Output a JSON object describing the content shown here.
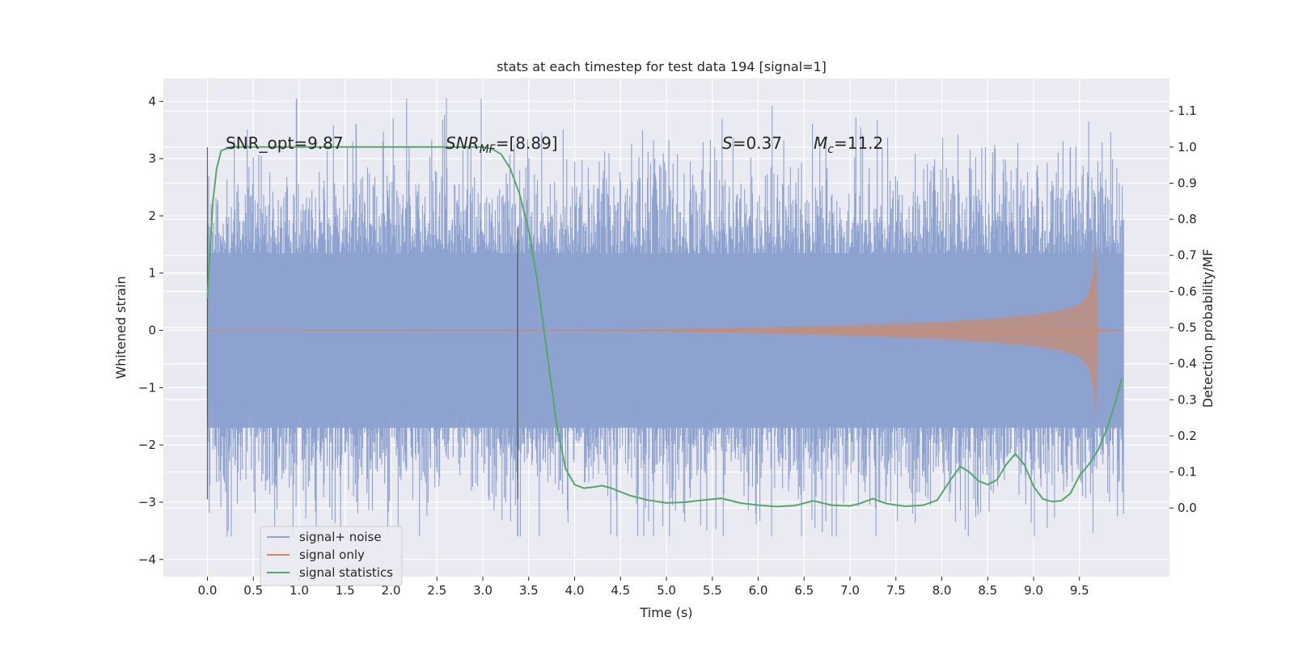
{
  "chart_data": {
    "type": "line",
    "title": "stats at each timestep for test data 194 [signal=1]",
    "xlabel": "Time (s)",
    "ylabel_left": "Whitened strain",
    "ylabel_right": "Detection probability/MF",
    "xlim": [
      -0.48,
      10.48
    ],
    "ylim_left": [
      -4.3,
      4.4
    ],
    "ylim_right": [
      -0.19,
      1.19
    ],
    "x_ticks": [
      "0.0",
      "0.5",
      "1.0",
      "1.5",
      "2.0",
      "2.5",
      "3.0",
      "3.5",
      "4.0",
      "4.5",
      "5.0",
      "5.5",
      "6.0",
      "6.5",
      "7.0",
      "7.5",
      "8.0",
      "8.5",
      "9.0",
      "9.5"
    ],
    "y_ticks_left": [
      "−4",
      "−3",
      "−2",
      "−1",
      "0",
      "1",
      "2",
      "3",
      "4"
    ],
    "y_ticks_right": [
      "0.0",
      "0.1",
      "0.2",
      "0.3",
      "0.4",
      "0.5",
      "0.6",
      "0.7",
      "0.8",
      "0.9",
      "1.0",
      "1.1"
    ],
    "grid": true,
    "legend_position": "lower-left",
    "annotations": {
      "snr_opt": "SNR_opt=9.87",
      "snr_mf_main": "SNR",
      "snr_mf_sub": "MF",
      "snr_mf_value": "=[8.89]",
      "s_symbol": "S",
      "s_value": "=0.37",
      "mc_symbol": "M",
      "mc_sub": "c",
      "mc_value": "=11.2"
    },
    "vertical_markers": [
      {
        "x": 0.0,
        "y_range": [
          -2.95,
          3.2
        ]
      },
      {
        "x": 3.38,
        "y_range": [
          -2.95,
          1.8
        ]
      }
    ],
    "series": [
      {
        "name": "signal+ noise",
        "color": "#8da2cf",
        "x_range": [
          0.0,
          9.98
        ],
        "band_typical": [
          -1.7,
          1.35
        ],
        "peak_max": 4.05,
        "peak_min": -3.6
      },
      {
        "name": "signal only",
        "color": "#dd8452",
        "x_range": [
          0.0,
          9.98
        ],
        "envelope": {
          "x": [
            0,
            4,
            5,
            6,
            7,
            8,
            8.5,
            9,
            9.3,
            9.5,
            9.6,
            9.66,
            9.68,
            9.69,
            9.98
          ],
          "amp": [
            0.0,
            0.005,
            0.02,
            0.05,
            0.09,
            0.15,
            0.2,
            0.27,
            0.35,
            0.46,
            0.65,
            1.05,
            1.6,
            0.03,
            0.0
          ]
        }
      },
      {
        "name": "signal statistics",
        "color": "#55a868",
        "axis": "right",
        "x": [
          0.0,
          0.03,
          0.06,
          0.1,
          0.15,
          0.25,
          0.5,
          1.0,
          2.0,
          3.0,
          3.1,
          3.2,
          3.3,
          3.4,
          3.5,
          3.6,
          3.7,
          3.8,
          3.9,
          4.0,
          4.1,
          4.2,
          4.3,
          4.4,
          4.6,
          4.8,
          5.0,
          5.2,
          5.4,
          5.6,
          5.8,
          6.0,
          6.2,
          6.4,
          6.6,
          6.8,
          7.0,
          7.1,
          7.25,
          7.4,
          7.6,
          7.8,
          7.95,
          8.1,
          8.2,
          8.3,
          8.4,
          8.5,
          8.6,
          8.7,
          8.8,
          8.9,
          9.0,
          9.1,
          9.2,
          9.3,
          9.4,
          9.5,
          9.6,
          9.7,
          9.8,
          9.9,
          9.96
        ],
        "y": [
          0.58,
          0.72,
          0.85,
          0.94,
          0.99,
          1.0,
          1.0,
          1.0,
          1.0,
          1.0,
          0.995,
          0.98,
          0.94,
          0.87,
          0.77,
          0.62,
          0.43,
          0.24,
          0.11,
          0.065,
          0.055,
          0.058,
          0.062,
          0.055,
          0.035,
          0.022,
          0.014,
          0.016,
          0.022,
          0.027,
          0.014,
          0.008,
          0.004,
          0.007,
          0.02,
          0.008,
          0.006,
          0.012,
          0.026,
          0.012,
          0.005,
          0.008,
          0.022,
          0.08,
          0.115,
          0.1,
          0.075,
          0.065,
          0.078,
          0.12,
          0.15,
          0.12,
          0.06,
          0.025,
          0.018,
          0.02,
          0.04,
          0.09,
          0.12,
          0.16,
          0.22,
          0.3,
          0.36
        ]
      }
    ]
  }
}
